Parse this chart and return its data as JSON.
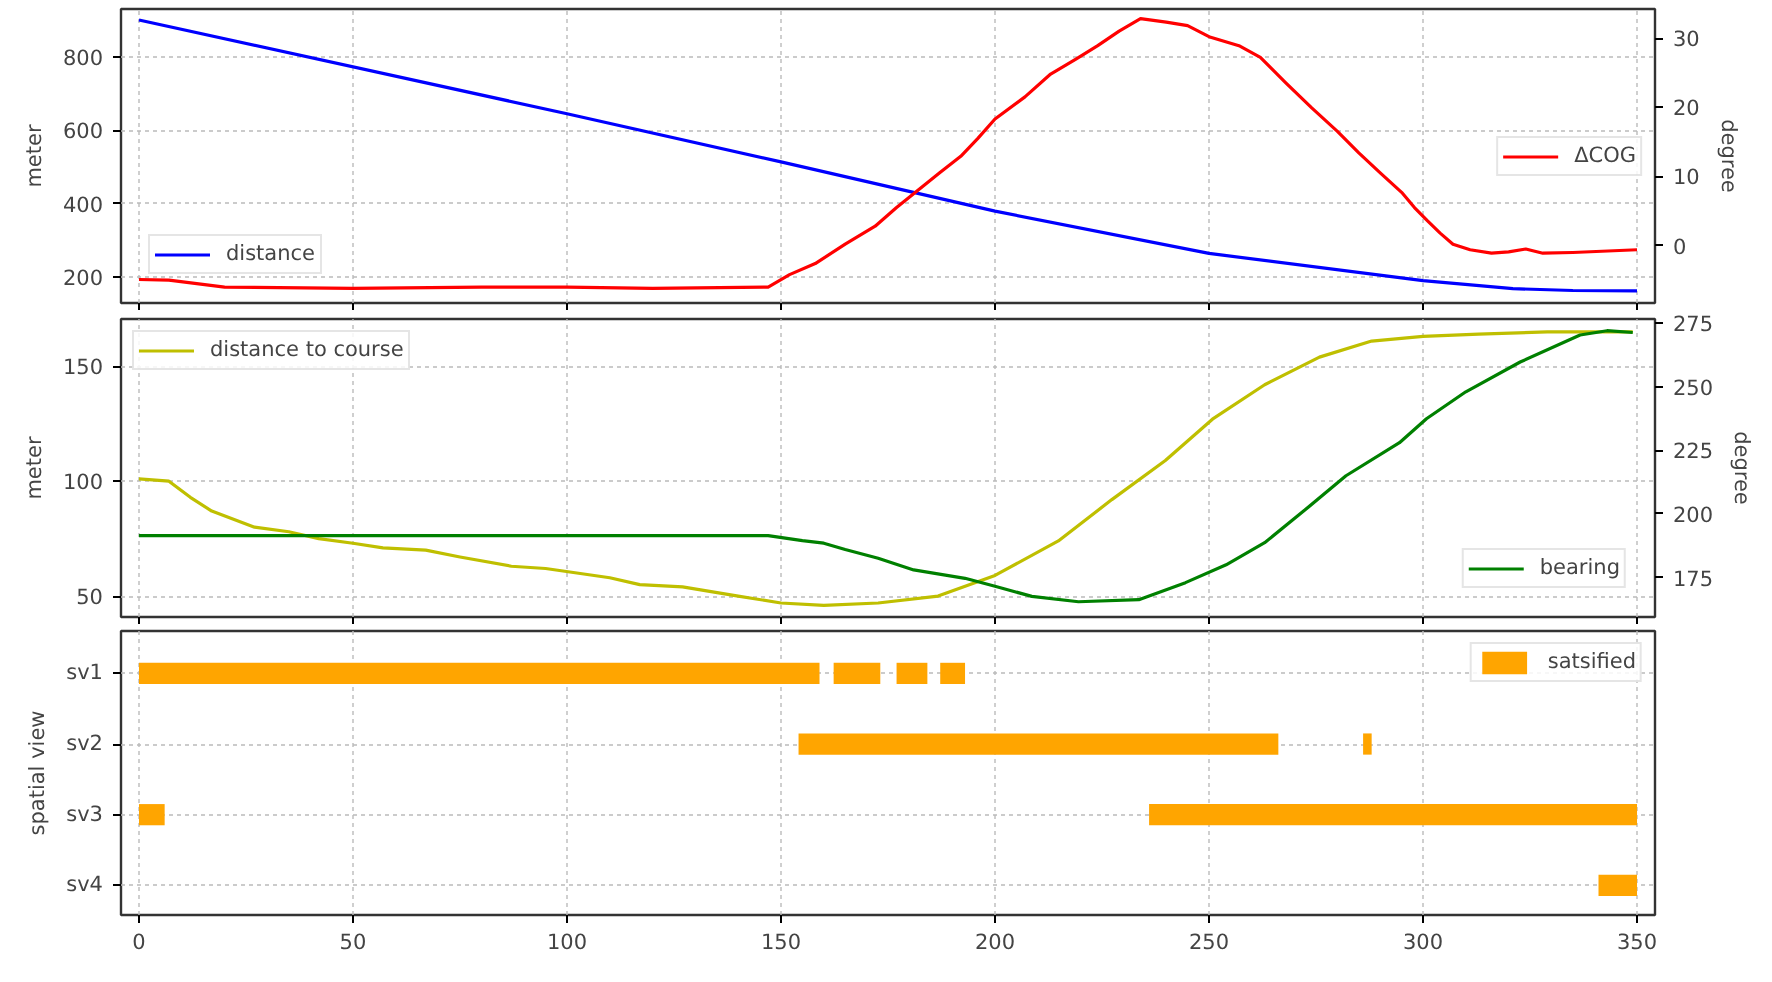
{
  "chart_data": [
    {
      "type": "line",
      "ylabel": "meter",
      "y2label": "degree",
      "xlim": [
        -4.2,
        354.2
      ],
      "xticks": [
        0,
        50,
        100,
        150,
        200,
        250,
        300,
        350
      ],
      "ylim": [
        130,
        930
      ],
      "yticks": [
        200,
        400,
        600,
        800
      ],
      "y2lim": [
        -8.3,
        34.2
      ],
      "y2ticks": [
        0,
        10,
        20,
        30
      ],
      "tick_labels": "y",
      "grid": true,
      "legend": [
        "bottom left",
        "right"
      ],
      "series": [
        {
          "name": "distance",
          "color": "#0000ff",
          "x": [
            0,
            100,
            150,
            200,
            250,
            300,
            321,
            335,
            350
          ],
          "values": [
            900,
            645,
            514,
            380,
            265,
            191,
            169,
            164,
            163
          ]
        },
        {
          "name": "ΔCOG",
          "color": "#ff0000",
          "axis": "y2",
          "x": [
            0,
            7,
            20,
            50,
            80,
            100,
            120,
            147,
            152,
            158,
            165,
            172,
            177,
            182,
            187,
            192,
            196,
            200,
            207,
            213,
            219,
            224,
            229,
            234,
            240,
            245,
            250,
            257,
            262,
            268,
            274,
            280,
            285,
            290,
            295,
            298,
            301,
            304,
            307,
            311,
            316,
            320,
            324,
            328,
            335,
            350
          ],
          "values": [
            -4.9,
            -5.0,
            -6.0,
            -6.2,
            -6.0,
            -6.0,
            -6.2,
            -6.0,
            -4.2,
            -2.6,
            0.2,
            2.8,
            5.5,
            8.0,
            10.5,
            12.9,
            15.5,
            18.3,
            21.5,
            24.8,
            27.0,
            28.9,
            31.0,
            32.8,
            32.3,
            31.8,
            30.2,
            28.9,
            27.2,
            23.5,
            19.9,
            16.5,
            13.4,
            10.5,
            7.7,
            5.5,
            3.6,
            1.8,
            0.2,
            -0.6,
            -1.1,
            -0.9,
            -0.5,
            -1.1,
            -1.0,
            -0.6
          ]
        }
      ]
    },
    {
      "type": "line",
      "ylabel": "meter",
      "y2label": "degree",
      "xlim": [
        -4.2,
        354.2
      ],
      "xticks": [
        0,
        50,
        100,
        150,
        200,
        250,
        300,
        350
      ],
      "ylim": [
        40.9,
        170.6
      ],
      "yticks": [
        50,
        100,
        150
      ],
      "y2lim": [
        159.5,
        276.6
      ],
      "y2ticks": [
        175,
        200,
        225,
        250,
        275
      ],
      "tick_labels": "y",
      "grid": true,
      "legend": [
        "top left",
        "bottom right"
      ],
      "series": [
        {
          "name": "distance to course",
          "color": "#bfbf00",
          "x": [
            0,
            7,
            12,
            17,
            27,
            35,
            42,
            50,
            57,
            67,
            75,
            87,
            95,
            110,
            117,
            127,
            140,
            150,
            160,
            172.7,
            186.7,
            200,
            214.8,
            227.3,
            239.8,
            250.8,
            263,
            275.8,
            288,
            300,
            313,
            329,
            349
          ],
          "values": [
            101,
            100,
            93,
            87,
            80,
            78,
            75,
            73,
            71,
            70,
            67,
            63,
            62,
            58,
            55,
            54,
            50,
            47,
            46,
            47,
            50,
            59,
            74,
            92,
            109,
            127,
            142,
            154,
            161,
            163,
            164,
            165,
            165
          ]
        },
        {
          "name": "bearing",
          "color": "#008000",
          "axis": "y2",
          "x": [
            0,
            147,
            155,
            160,
            165,
            172.7,
            181,
            193,
            200,
            208.6,
            219.5,
            233.6,
            244.5,
            254,
            263,
            272.6,
            282,
            294.5,
            300.8,
            310,
            322.7,
            336.7,
            343,
            349
          ],
          "values": [
            191.5,
            191.5,
            189.5,
            188.5,
            186,
            182.6,
            178,
            174.7,
            171.6,
            167.6,
            165.5,
            166.3,
            173,
            180,
            188.7,
            201.8,
            215,
            228,
            237.4,
            248,
            259.7,
            270.3,
            272,
            271.3
          ]
        }
      ]
    },
    {
      "type": "bar",
      "orientation": "horizontal",
      "ylabel": "spatial view",
      "categories": [
        "sv1",
        "sv2",
        "sv3",
        "sv4"
      ],
      "xlim": [
        -4.2,
        354.2
      ],
      "xticks": [
        0,
        50,
        100,
        150,
        200,
        250,
        300,
        350
      ],
      "grid": true,
      "legend": "top right",
      "series": [
        {
          "name": "satsified",
          "color": "#ffa500",
          "base": [
            0,
            154.1,
            0,
            341
          ],
          "values": [
            159,
            112.1,
            6,
            9
          ]
        },
        {
          "color": "#ffa500",
          "base": [
            162.3,
            286,
            236,
            null
          ],
          "values": [
            10.9,
            2,
            114,
            null
          ]
        },
        {
          "color": "#ffa500",
          "base": [
            177,
            null,
            null,
            null
          ],
          "values": [
            7.2,
            null,
            null,
            null
          ]
        },
        {
          "color": "#ffa500",
          "base": [
            187.2,
            null,
            null,
            null
          ],
          "values": [
            5.8,
            null,
            null,
            null
          ]
        }
      ]
    }
  ]
}
